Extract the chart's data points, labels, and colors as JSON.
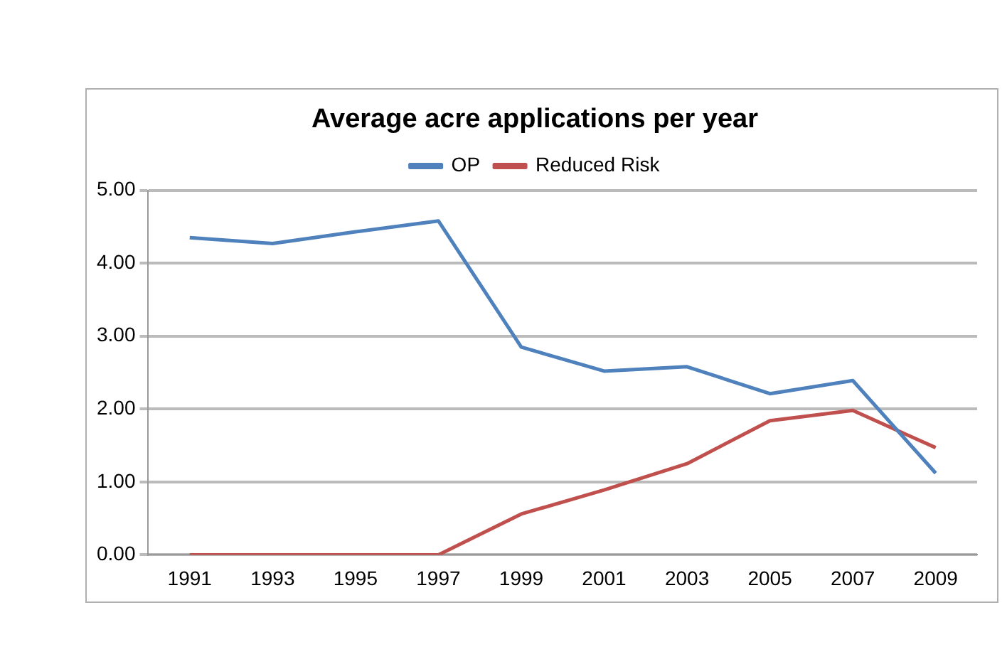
{
  "chart_data": {
    "type": "line",
    "title": "Average acre applications per year",
    "categories": [
      "1991",
      "1993",
      "1995",
      "1997",
      "1999",
      "2001",
      "2003",
      "2005",
      "2007",
      "2009"
    ],
    "series": [
      {
        "name": "OP",
        "color": "#4f81bd",
        "values": [
          4.35,
          4.27,
          4.43,
          4.58,
          2.85,
          2.52,
          2.58,
          2.21,
          2.39,
          1.12
        ]
      },
      {
        "name": "Reduced Risk",
        "color": "#c0504d",
        "values": [
          0,
          0,
          0,
          0,
          0.56,
          0.89,
          1.25,
          1.84,
          1.98,
          1.47
        ]
      }
    ],
    "ylim": [
      0,
      5
    ],
    "yticks": [
      {
        "value": 0,
        "label": "0.00"
      },
      {
        "value": 1,
        "label": "1.00"
      },
      {
        "value": 2,
        "label": "2.00"
      },
      {
        "value": 3,
        "label": "3.00"
      },
      {
        "value": 4,
        "label": "4.00"
      },
      {
        "value": 5,
        "label": "5.00"
      }
    ],
    "grid": "y",
    "legend": "top",
    "marker": "none",
    "line_style": "solid"
  }
}
